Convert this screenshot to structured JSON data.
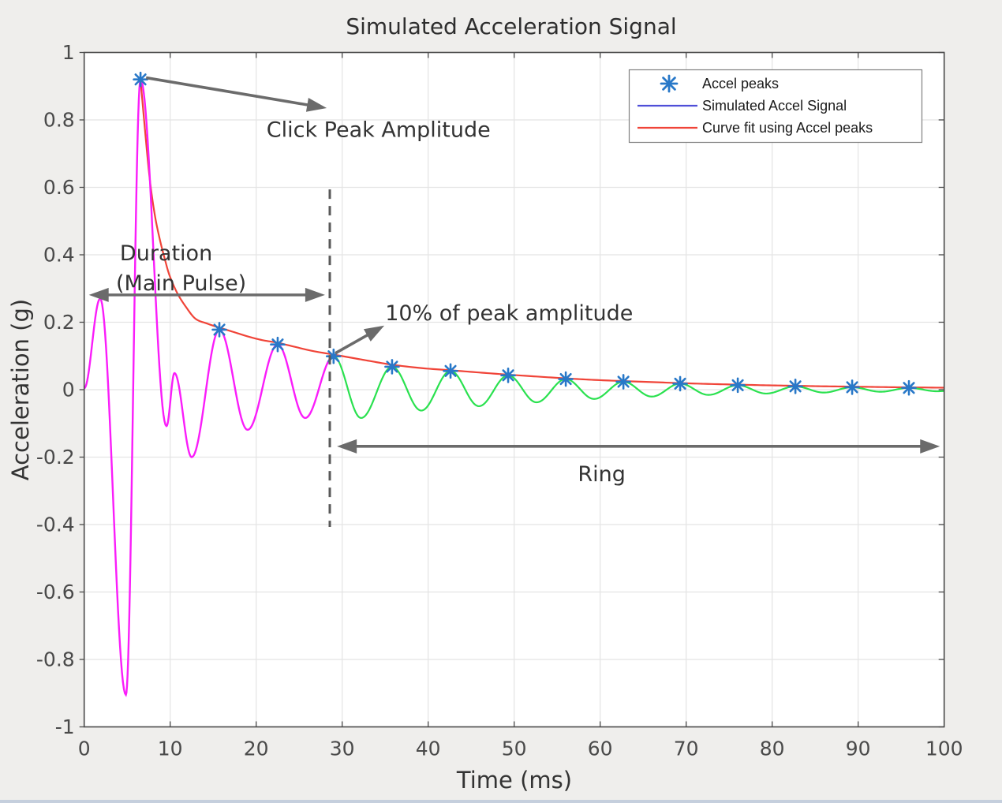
{
  "style": {
    "bg": "#efeeec",
    "plot_bg": "#ffffff",
    "grid": "#e4e4e4",
    "axis": "#4a4a4a",
    "tick_label": "#4a4a4a",
    "title_color": "#2e2e2e",
    "magenta": "#fa1dfa",
    "green": "#2ae14f",
    "red": "#f04438",
    "blue_line": "#4f4fd8",
    "marker_blue": "#2878c8",
    "annotation_text": "#333333",
    "arrow_gray": "#6b6b6b",
    "dashed_gray": "#595959",
    "legend_border": "#808080",
    "legend_text": "#1a1a1a",
    "bottom_strip": "#bdc9da"
  },
  "chart_data": {
    "type": "line",
    "title": "Simulated Acceleration Signal",
    "xlabel": "Time (ms)",
    "ylabel": "Acceleration (g)",
    "xlim": [
      0,
      100
    ],
    "ylim": [
      -1,
      1
    ],
    "xtick_vals": [
      0,
      10,
      20,
      30,
      40,
      50,
      60,
      70,
      80,
      90,
      100
    ],
    "xtick_labels": [
      "0",
      "10",
      "20",
      "30",
      "40",
      "50",
      "60",
      "70",
      "80",
      "90",
      "100"
    ],
    "ytick_vals": [
      1,
      0.8,
      0.6,
      0.4,
      0.2,
      0,
      -0.2,
      -0.4,
      -0.6,
      -0.8,
      -1
    ],
    "ytick_labels": [
      "1",
      "0.8",
      "0.6",
      "0.4",
      "0.2",
      "0",
      "-0.2",
      "-0.4",
      "-0.6",
      "-0.8",
      "-1"
    ],
    "grid": true,
    "legend_position": "top-right",
    "series": [
      {
        "name": "Simulated Accel Signal (main pulse segment)",
        "color_key": "magenta",
        "interp": "cosine-extrema",
        "points": [
          [
            0,
            0.004
          ],
          [
            1.86,
            0.27
          ],
          [
            4.85,
            -0.905
          ],
          [
            6.55,
            0.92
          ],
          [
            9.57,
            -0.108
          ],
          [
            10.5,
            0.049
          ],
          [
            12.5,
            -0.2
          ],
          [
            15.72,
            0.178
          ],
          [
            19.0,
            -0.119
          ],
          [
            22.5,
            0.134
          ],
          [
            25.7,
            -0.084
          ],
          [
            29.0,
            0.099
          ]
        ]
      },
      {
        "name": "Simulated Accel Signal (ring segment)",
        "color_key": "green",
        "interp": "cosine-extrema",
        "points": [
          [
            29.0,
            0.099
          ],
          [
            32.2,
            -0.084
          ],
          [
            35.8,
            0.068
          ],
          [
            39.2,
            -0.062
          ],
          [
            42.6,
            0.0555
          ],
          [
            45.9,
            -0.049
          ],
          [
            49.3,
            0.0425
          ],
          [
            52.6,
            -0.0375
          ],
          [
            56.0,
            0.0315
          ],
          [
            59.3,
            -0.0275
          ],
          [
            62.7,
            0.0235
          ],
          [
            66.0,
            -0.0205
          ],
          [
            69.3,
            0.0178
          ],
          [
            72.6,
            -0.0155
          ],
          [
            76.0,
            0.0132
          ],
          [
            79.3,
            -0.0115
          ],
          [
            82.7,
            0.0098
          ],
          [
            86.0,
            -0.0085
          ],
          [
            89.3,
            0.0072
          ],
          [
            92.6,
            -0.0062
          ],
          [
            95.9,
            0.0053
          ],
          [
            99.2,
            -0.0048
          ],
          [
            100,
            -0.004
          ]
        ]
      },
      {
        "name": "Curve fit using Accel peaks",
        "color_key": "red",
        "interp": "catmull-rom",
        "points": [
          [
            6.55,
            0.92
          ],
          [
            7.0,
            0.79
          ],
          [
            7.6,
            0.63
          ],
          [
            8.2,
            0.52
          ],
          [
            8.8,
            0.445
          ],
          [
            9.4,
            0.385
          ],
          [
            9.95,
            0.337
          ],
          [
            10.85,
            0.285
          ],
          [
            11.9,
            0.243
          ],
          [
            12.96,
            0.21
          ],
          [
            14.3,
            0.196
          ],
          [
            15.72,
            0.184
          ],
          [
            17.5,
            0.17
          ],
          [
            19,
            0.158
          ],
          [
            20.7,
            0.147
          ],
          [
            22.5,
            0.139
          ],
          [
            24.5,
            0.127
          ],
          [
            26.5,
            0.115
          ],
          [
            29,
            0.104
          ],
          [
            31,
            0.095
          ],
          [
            33,
            0.086
          ],
          [
            35.8,
            0.074
          ],
          [
            39.2,
            0.064
          ],
          [
            42.6,
            0.0575
          ],
          [
            45.9,
            0.051
          ],
          [
            49.3,
            0.0445
          ],
          [
            52.6,
            0.039
          ],
          [
            56,
            0.0335
          ],
          [
            59.3,
            0.029
          ],
          [
            62.7,
            0.0255
          ],
          [
            66,
            0.0225
          ],
          [
            69.3,
            0.0195
          ],
          [
            72.6,
            0.017
          ],
          [
            76,
            0.015
          ],
          [
            79.3,
            0.013
          ],
          [
            82.7,
            0.0115
          ],
          [
            86,
            0.01
          ],
          [
            89.3,
            0.009
          ],
          [
            92.6,
            0.0078
          ],
          [
            95.9,
            0.0068
          ],
          [
            100,
            0.0058
          ]
        ]
      },
      {
        "name": "Accel peaks",
        "color_key": "marker_blue",
        "type": "scatter",
        "marker": "asterisk",
        "points": [
          [
            6.55,
            0.92
          ],
          [
            15.72,
            0.178
          ],
          [
            22.5,
            0.134
          ],
          [
            29.0,
            0.099
          ],
          [
            35.8,
            0.068
          ],
          [
            42.6,
            0.0555
          ],
          [
            49.3,
            0.0425
          ],
          [
            56.0,
            0.0315
          ],
          [
            62.7,
            0.0235
          ],
          [
            69.3,
            0.0178
          ],
          [
            76.0,
            0.0132
          ],
          [
            82.7,
            0.0098
          ],
          [
            89.3,
            0.0072
          ],
          [
            95.9,
            0.0053
          ]
        ]
      }
    ],
    "dashed_line": {
      "x_ms": 28.56,
      "y_top_g": 0.594,
      "y_bottom_g": -0.407
    }
  },
  "legend": {
    "items": [
      {
        "label": "Accel peaks",
        "marker": "asterisk",
        "color_key": "marker_blue"
      },
      {
        "label": "Simulated Accel Signal",
        "marker": "line",
        "color_key": "blue_line"
      },
      {
        "label": "Curve fit using Accel peaks",
        "marker": "line",
        "color_key": "red"
      }
    ]
  },
  "annotations": {
    "click_peak": {
      "text": "Click Peak Amplitude",
      "text_x_ms": 21.2,
      "text_y_g": 0.75,
      "arrow": {
        "x1_ms": 7.2,
        "y1_g": 0.925,
        "x2_ms": 28.2,
        "y2_g": 0.835,
        "heads": "end"
      }
    },
    "duration": {
      "line1": "Duration",
      "line2": "(Main Pulse)",
      "line1_x_ms": 4.15,
      "line1_y_g": 0.384,
      "line2_x_ms": 3.7,
      "line2_y_g": 0.295,
      "arrow": {
        "x1_ms": 0.55,
        "y1_g": 0.281,
        "x2_ms": 28.0,
        "y2_g": 0.281,
        "heads": "both"
      }
    },
    "ten_percent": {
      "text": "10% of peak amplitude",
      "text_x_ms": 35.0,
      "text_y_g": 0.206,
      "arrow": {
        "x1_ms": 29.2,
        "y1_g": 0.108,
        "x2_ms": 34.9,
        "y2_g": 0.19,
        "heads": "end"
      }
    },
    "ring": {
      "text": "Ring",
      "text_x_ms": 57.4,
      "text_y_g": -0.271,
      "arrow": {
        "x1_ms": 29.4,
        "y1_g": -0.168,
        "x2_ms": 99.5,
        "y2_g": -0.168,
        "heads": "both"
      }
    }
  }
}
